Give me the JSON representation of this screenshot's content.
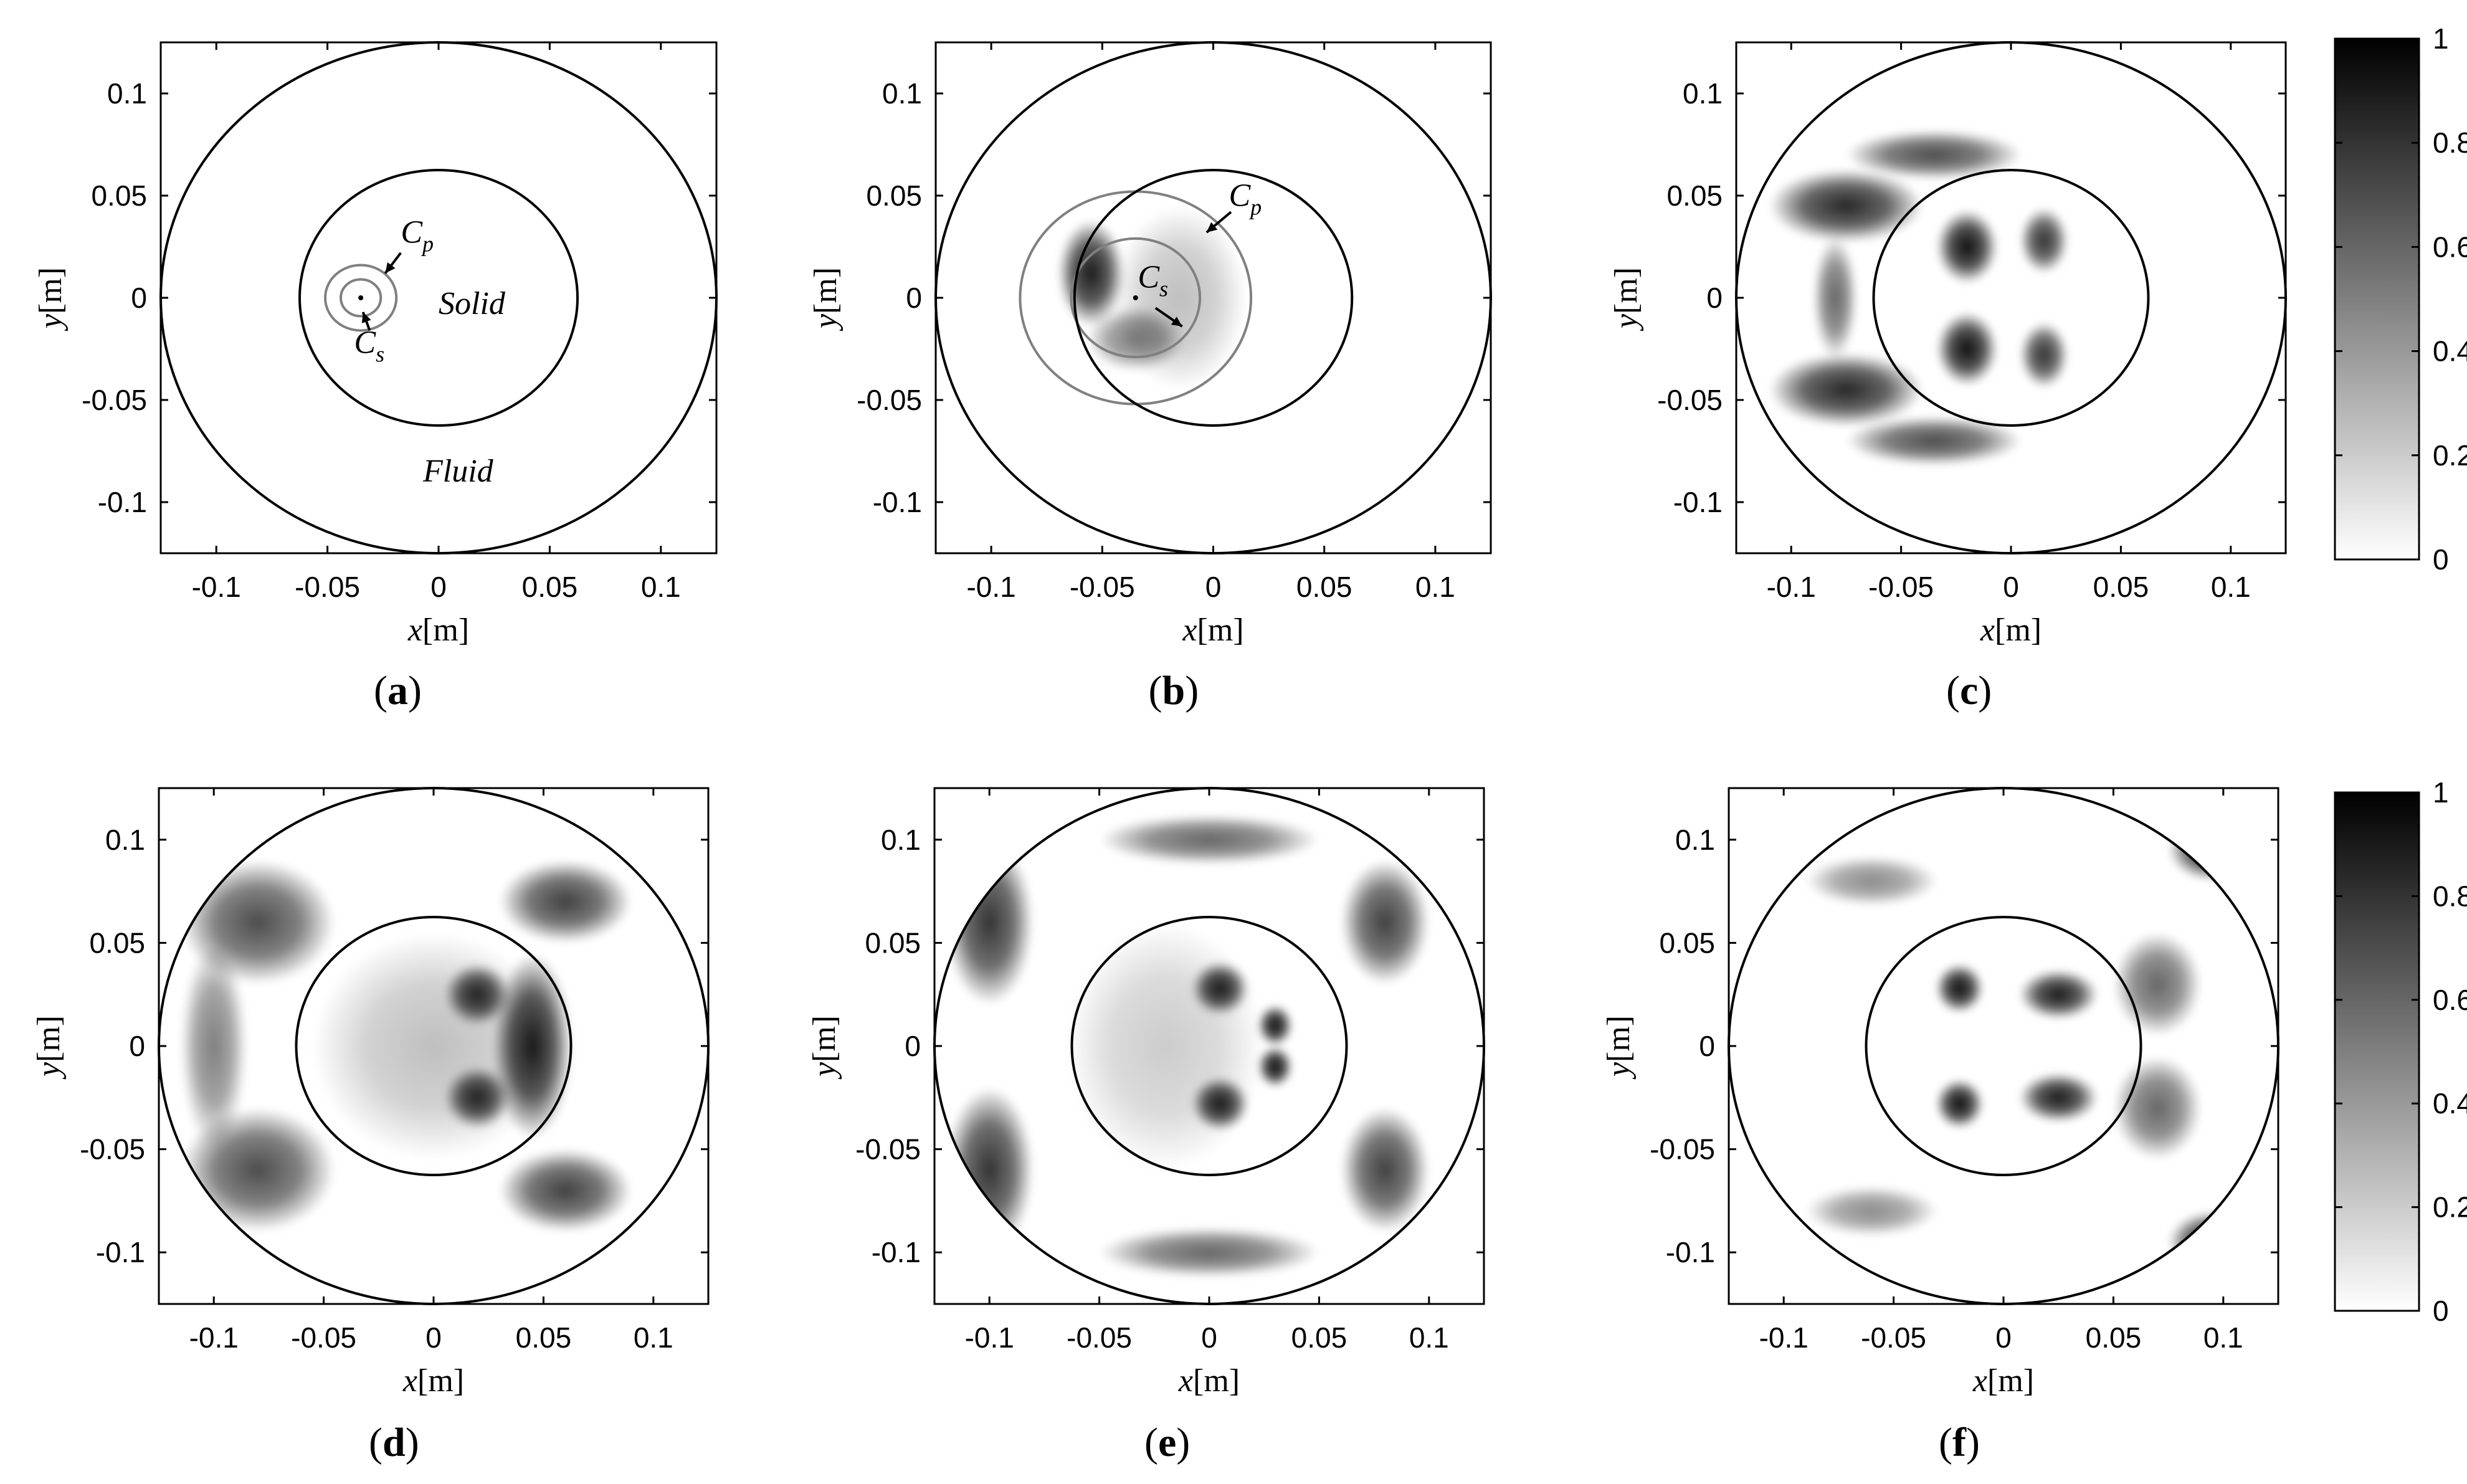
{
  "figure": {
    "colorbar_ticks": [
      "0",
      "0.2",
      "0.4",
      "0.6",
      "0.8",
      "1"
    ],
    "colorbar_range": [
      0,
      1
    ],
    "panel_labels": {
      "a": {
        "open": "(",
        "letter": "a",
        "close": ")"
      },
      "b": {
        "open": "(",
        "letter": "b",
        "close": ")"
      },
      "c": {
        "open": "(",
        "letter": "c",
        "close": ")"
      },
      "d": {
        "open": "(",
        "letter": "d",
        "close": ")"
      },
      "e": {
        "open": "(",
        "letter": "e",
        "close": ")"
      },
      "f": {
        "open": "(",
        "letter": "f",
        "close": ")"
      }
    },
    "annotations": {
      "solid": "Solid",
      "fluid": "Fluid",
      "cp": {
        "main": "C",
        "sub": "p"
      },
      "cs": {
        "main": "C",
        "sub": "s"
      }
    },
    "axis_label_x": {
      "var": "x",
      "unit": "[m]"
    },
    "axis_label_y": {
      "var": "y",
      "unit": "[m]"
    },
    "colors": {
      "axes": "#000000",
      "wavefront": "#808080",
      "colormap_low": "#ffffff",
      "colormap_high": "#000000"
    }
  },
  "chart_data": [
    {
      "panel": "a",
      "type": "heatmap",
      "colormap": "gray (white = 0, black = 1)",
      "xlabel": "x[m]",
      "ylabel": "y[m]",
      "xlim": [
        -0.125,
        0.125
      ],
      "ylim": [
        -0.125,
        0.125
      ],
      "xticks": [
        "-0.1",
        "-0.05",
        "0",
        "0.05",
        "0.1"
      ],
      "yticks": [
        "0.1",
        "0.05",
        "0",
        "-0.05",
        "-0.1"
      ],
      "geometry": {
        "outer_circle_radius": 0.125,
        "inner_circle_radius": 0.0625,
        "source": [
          -0.035,
          0
        ]
      },
      "wavefront_radius": {
        "Cp": 0.016,
        "Cs": 0.009
      },
      "regions": [
        "Solid",
        "Fluid"
      ],
      "lobes": []
    },
    {
      "panel": "b",
      "type": "heatmap",
      "colormap": "gray (white = 0, black = 1)",
      "xlabel": "x[m]",
      "ylabel": "y[m]",
      "xlim": [
        -0.125,
        0.125
      ],
      "ylim": [
        -0.125,
        0.125
      ],
      "xticks": [
        "-0.1",
        "-0.05",
        "0",
        "0.05",
        "0.1"
      ],
      "yticks": [
        "0.1",
        "0.05",
        "0",
        "-0.05",
        "-0.1"
      ],
      "geometry": {
        "outer_circle_radius": 0.125,
        "inner_circle_radius": 0.0625,
        "source": [
          -0.035,
          0
        ]
      },
      "wavefront_radius": {
        "Cp": 0.052,
        "Cs": 0.029
      },
      "lobes": [
        {
          "x": -0.055,
          "y": 0.012,
          "rx": 0.015,
          "ry": 0.026,
          "value": 0.9
        },
        {
          "x": -0.035,
          "y": -0.02,
          "rx": 0.022,
          "ry": 0.016,
          "value": 0.5
        },
        {
          "x": -0.015,
          "y": 0.0,
          "rx": 0.03,
          "ry": 0.045,
          "value": 0.25
        }
      ]
    },
    {
      "panel": "c",
      "type": "heatmap",
      "colormap": "gray (white = 0, black = 1)",
      "xlabel": "x[m]",
      "ylabel": "y[m]",
      "xlim": [
        -0.125,
        0.125
      ],
      "ylim": [
        -0.125,
        0.125
      ],
      "xticks": [
        "-0.1",
        "-0.05",
        "0",
        "0.05",
        "0.1"
      ],
      "yticks": [
        "0.1",
        "0.05",
        "0",
        "-0.05",
        "-0.1"
      ],
      "geometry": {
        "outer_circle_radius": 0.125,
        "inner_circle_radius": 0.0625
      },
      "lobes": [
        {
          "x": -0.02,
          "y": 0.025,
          "rx": 0.014,
          "ry": 0.018,
          "value": 0.95
        },
        {
          "x": -0.02,
          "y": -0.025,
          "rx": 0.014,
          "ry": 0.018,
          "value": 0.95
        },
        {
          "x": 0.015,
          "y": 0.028,
          "rx": 0.011,
          "ry": 0.016,
          "value": 0.8
        },
        {
          "x": 0.015,
          "y": -0.028,
          "rx": 0.011,
          "ry": 0.016,
          "value": 0.8
        },
        {
          "x": -0.075,
          "y": 0.045,
          "rx": 0.035,
          "ry": 0.018,
          "value": 0.85
        },
        {
          "x": -0.075,
          "y": -0.045,
          "rx": 0.035,
          "ry": 0.018,
          "value": 0.85
        },
        {
          "x": -0.08,
          "y": 0.0,
          "rx": 0.01,
          "ry": 0.03,
          "value": 0.6
        },
        {
          "x": -0.035,
          "y": 0.07,
          "rx": 0.04,
          "ry": 0.012,
          "value": 0.7
        },
        {
          "x": -0.035,
          "y": -0.07,
          "rx": 0.04,
          "ry": 0.012,
          "value": 0.7
        }
      ]
    },
    {
      "panel": "d",
      "type": "heatmap",
      "colormap": "gray (white = 0, black = 1)",
      "xlabel": "x[m]",
      "ylabel": "y[m]",
      "xlim": [
        -0.125,
        0.125
      ],
      "ylim": [
        -0.125,
        0.125
      ],
      "xticks": [
        "-0.1",
        "-0.05",
        "0",
        "0.05",
        "0.1"
      ],
      "yticks": [
        "0.1",
        "0.05",
        "0",
        "-0.05",
        "-0.1"
      ],
      "geometry": {
        "outer_circle_radius": 0.125,
        "inner_circle_radius": 0.0625
      },
      "lobes": [
        {
          "x": 0.045,
          "y": 0.0,
          "rx": 0.018,
          "ry": 0.045,
          "value": 0.9
        },
        {
          "x": 0.02,
          "y": 0.025,
          "rx": 0.015,
          "ry": 0.015,
          "value": 0.85
        },
        {
          "x": 0.02,
          "y": -0.025,
          "rx": 0.015,
          "ry": 0.015,
          "value": 0.85
        },
        {
          "x": 0.0,
          "y": 0.0,
          "rx": 0.055,
          "ry": 0.055,
          "value": 0.25
        },
        {
          "x": -0.08,
          "y": 0.06,
          "rx": 0.035,
          "ry": 0.03,
          "value": 0.7
        },
        {
          "x": -0.08,
          "y": -0.06,
          "rx": 0.035,
          "ry": 0.03,
          "value": 0.7
        },
        {
          "x": 0.06,
          "y": 0.07,
          "rx": 0.03,
          "ry": 0.02,
          "value": 0.75
        },
        {
          "x": 0.06,
          "y": -0.07,
          "rx": 0.03,
          "ry": 0.02,
          "value": 0.75
        },
        {
          "x": -0.1,
          "y": 0.0,
          "rx": 0.015,
          "ry": 0.05,
          "value": 0.5
        }
      ]
    },
    {
      "panel": "e",
      "type": "heatmap",
      "colormap": "gray (white = 0, black = 1)",
      "xlabel": "x[m]",
      "ylabel": "y[m]",
      "xlim": [
        -0.125,
        0.125
      ],
      "ylim": [
        -0.125,
        0.125
      ],
      "xticks": [
        "-0.1",
        "-0.05",
        "0",
        "0.05",
        "0.1"
      ],
      "yticks": [
        "0.1",
        "0.05",
        "0",
        "-0.05",
        "-0.1"
      ],
      "geometry": {
        "outer_circle_radius": 0.125,
        "inner_circle_radius": 0.0625
      },
      "lobes": [
        {
          "x": 0.03,
          "y": 0.01,
          "rx": 0.008,
          "ry": 0.01,
          "value": 0.95
        },
        {
          "x": 0.03,
          "y": -0.01,
          "rx": 0.008,
          "ry": 0.01,
          "value": 0.95
        },
        {
          "x": 0.005,
          "y": 0.028,
          "rx": 0.013,
          "ry": 0.013,
          "value": 0.9
        },
        {
          "x": 0.005,
          "y": -0.028,
          "rx": 0.013,
          "ry": 0.013,
          "value": 0.9
        },
        {
          "x": -0.02,
          "y": 0.0,
          "rx": 0.045,
          "ry": 0.06,
          "value": 0.2
        },
        {
          "x": -0.1,
          "y": 0.06,
          "rx": 0.02,
          "ry": 0.04,
          "value": 0.8
        },
        {
          "x": -0.1,
          "y": -0.06,
          "rx": 0.02,
          "ry": 0.04,
          "value": 0.8
        },
        {
          "x": 0.08,
          "y": 0.06,
          "rx": 0.02,
          "ry": 0.03,
          "value": 0.75
        },
        {
          "x": 0.08,
          "y": -0.06,
          "rx": 0.02,
          "ry": 0.03,
          "value": 0.75
        },
        {
          "x": 0.0,
          "y": 0.1,
          "rx": 0.05,
          "ry": 0.012,
          "value": 0.6
        },
        {
          "x": 0.0,
          "y": -0.1,
          "rx": 0.05,
          "ry": 0.012,
          "value": 0.6
        }
      ]
    },
    {
      "panel": "f",
      "type": "heatmap",
      "colormap": "gray (white = 0, black = 1)",
      "xlabel": "x[m]",
      "ylabel": "y[m]",
      "xlim": [
        -0.125,
        0.125
      ],
      "ylim": [
        -0.125,
        0.125
      ],
      "xticks": [
        "-0.1",
        "-0.05",
        "0",
        "0.05",
        "0.1"
      ],
      "yticks": [
        "0.1",
        "0.05",
        "0",
        "-0.05",
        "-0.1"
      ],
      "geometry": {
        "outer_circle_radius": 0.125,
        "inner_circle_radius": 0.0625
      },
      "lobes": [
        {
          "x": -0.02,
          "y": 0.028,
          "rx": 0.011,
          "ry": 0.012,
          "value": 0.95
        },
        {
          "x": -0.02,
          "y": -0.028,
          "rx": 0.011,
          "ry": 0.012,
          "value": 0.95
        },
        {
          "x": 0.025,
          "y": 0.025,
          "rx": 0.018,
          "ry": 0.012,
          "value": 0.9
        },
        {
          "x": 0.025,
          "y": -0.025,
          "rx": 0.018,
          "ry": 0.012,
          "value": 0.9
        },
        {
          "x": 0.095,
          "y": 0.095,
          "rx": 0.02,
          "ry": 0.015,
          "value": 0.9
        },
        {
          "x": 0.095,
          "y": -0.095,
          "rx": 0.02,
          "ry": 0.015,
          "value": 0.9
        },
        {
          "x": 0.07,
          "y": 0.03,
          "rx": 0.02,
          "ry": 0.025,
          "value": 0.6
        },
        {
          "x": 0.07,
          "y": -0.03,
          "rx": 0.02,
          "ry": 0.025,
          "value": 0.6
        },
        {
          "x": -0.06,
          "y": 0.08,
          "rx": 0.03,
          "ry": 0.012,
          "value": 0.45
        },
        {
          "x": -0.06,
          "y": -0.08,
          "rx": 0.03,
          "ry": 0.012,
          "value": 0.45
        }
      ]
    }
  ]
}
